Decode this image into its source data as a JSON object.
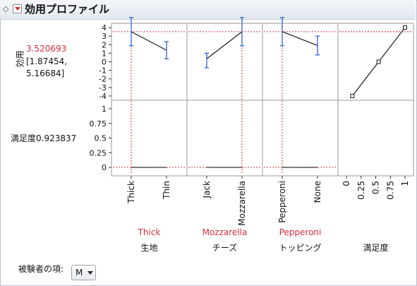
{
  "header": {
    "title": "効用プロファイル"
  },
  "utility": {
    "label": "効用",
    "value": "3.520693",
    "ci_low": "[1.87454,",
    "ci_high": "5.16684]"
  },
  "satisfaction": {
    "label": "満足度0.923837"
  },
  "factors": [
    {
      "name": "生地",
      "current": "Thick",
      "levels": [
        "Thick",
        "Thin"
      ],
      "utility": [
        3.52,
        1.35
      ],
      "ci_low": [
        1.87,
        0.35
      ],
      "ci_high": [
        5.17,
        2.35
      ]
    },
    {
      "name": "チーズ",
      "current": "Mozzarella",
      "levels": [
        "Jack",
        "Mozzarella"
      ],
      "utility": [
        0.35,
        3.52
      ],
      "ci_low": [
        -0.7,
        1.87
      ],
      "ci_high": [
        1.0,
        5.17
      ]
    },
    {
      "name": "トッピング",
      "current": "Pepperoni",
      "levels": [
        "Pepperoni",
        "None"
      ],
      "utility": [
        3.52,
        1.9
      ],
      "ci_low": [
        1.87,
        0.8
      ],
      "ci_high": [
        5.17,
        3.0
      ]
    }
  ],
  "desirability": {
    "name": "満足度",
    "ticks": [
      "0",
      "0.25",
      "0.5",
      "0.75",
      "1"
    ],
    "points": [
      [
        0.1,
        -4.0
      ],
      [
        0.55,
        0.0
      ],
      [
        1.0,
        4.0
      ]
    ]
  },
  "axes": {
    "utility_ticks": [
      "4",
      "3",
      "2",
      "1",
      "0",
      "-1",
      "-2",
      "-3",
      "-4"
    ],
    "satisfaction_ticks": [
      "1",
      "0.75",
      "0.5",
      "0.25",
      "0"
    ]
  },
  "subject": {
    "label": "被験者の項:",
    "value": "M"
  },
  "colors": {
    "ci": "#2f63d6",
    "ref": "#e0343c",
    "line": "#1a1a1a",
    "grid": "#9a9a9a"
  },
  "chart_data": {
    "type": "line",
    "title": "",
    "xlabel": "",
    "ylabel": "効用",
    "ylim": [
      -4.5,
      4.5
    ],
    "series": [
      {
        "name": "生地",
        "categories": [
          "Thick",
          "Thin"
        ],
        "values": [
          3.52,
          1.35
        ]
      },
      {
        "name": "チーズ",
        "categories": [
          "Jack",
          "Mozzarella"
        ],
        "values": [
          0.35,
          3.52
        ]
      },
      {
        "name": "トッピング",
        "categories": [
          "Pepperoni",
          "None"
        ],
        "values": [
          3.52,
          1.9
        ]
      }
    ],
    "grid": false,
    "legend": "none"
  }
}
